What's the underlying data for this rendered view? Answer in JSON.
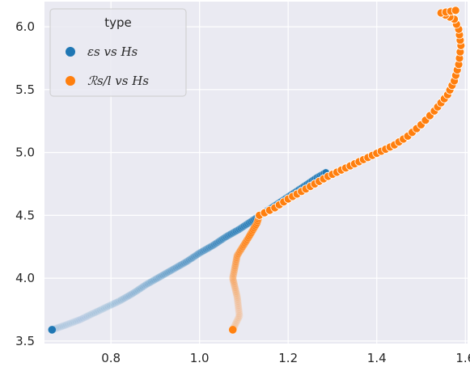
{
  "chart_data": {
    "type": "scatter",
    "title": "",
    "xlabel": "",
    "ylabel": "",
    "xlim": [
      0.65,
      1.605
    ],
    "ylim": [
      3.48,
      6.2
    ],
    "x_ticks": [
      "0.8",
      "1.0",
      "1.2",
      "1.4",
      "1.6"
    ],
    "y_ticks": [
      "3.5",
      "4.0",
      "4.5",
      "5.0",
      "5.5",
      "6.0"
    ],
    "grid": true,
    "legend": {
      "title": "type",
      "placement": "top-left",
      "entries": [
        "𝜀s vs Hs",
        "ℛs/l vs Hs"
      ]
    },
    "colors": {
      "background": "#eaeaf2",
      "grid": "#ffffff",
      "series_blue": "#1f77b4",
      "series_orange": "#ff7f0e"
    },
    "series": [
      {
        "name": "𝜀s vs Hs",
        "color": "#1f77b4",
        "points": [
          [
            0.667,
            3.59
          ],
          [
            0.7,
            3.63
          ],
          [
            0.73,
            3.67
          ],
          [
            0.76,
            3.72
          ],
          [
            0.79,
            3.77
          ],
          [
            0.82,
            3.82
          ],
          [
            0.85,
            3.88
          ],
          [
            0.88,
            3.95
          ],
          [
            0.91,
            4.01
          ],
          [
            0.94,
            4.07
          ],
          [
            0.97,
            4.13
          ],
          [
            1.0,
            4.2
          ],
          [
            1.03,
            4.26
          ],
          [
            1.06,
            4.33
          ],
          [
            1.09,
            4.39
          ],
          [
            1.12,
            4.46
          ],
          [
            1.15,
            4.53
          ],
          [
            1.18,
            4.6
          ],
          [
            1.21,
            4.67
          ],
          [
            1.24,
            4.74
          ],
          [
            1.265,
            4.8
          ],
          [
            1.285,
            4.84
          ]
        ]
      },
      {
        "name": "ℛs/l vs Hs",
        "color": "#ff7f0e",
        "points": [
          [
            1.075,
            3.59
          ],
          [
            1.09,
            3.7
          ],
          [
            1.085,
            3.85
          ],
          [
            1.075,
            4.0
          ],
          [
            1.085,
            4.18
          ],
          [
            1.11,
            4.32
          ],
          [
            1.13,
            4.44
          ],
          [
            1.135,
            4.5
          ],
          [
            1.17,
            4.56
          ],
          [
            1.2,
            4.63
          ],
          [
            1.23,
            4.69
          ],
          [
            1.26,
            4.75
          ],
          [
            1.29,
            4.81
          ],
          [
            1.32,
            4.86
          ],
          [
            1.35,
            4.91
          ],
          [
            1.38,
            4.96
          ],
          [
            1.41,
            5.01
          ],
          [
            1.44,
            5.06
          ],
          [
            1.47,
            5.13
          ],
          [
            1.5,
            5.22
          ],
          [
            1.53,
            5.33
          ],
          [
            1.56,
            5.46
          ],
          [
            1.575,
            5.57
          ],
          [
            1.585,
            5.7
          ],
          [
            1.59,
            5.85
          ],
          [
            1.585,
            5.98
          ],
          [
            1.575,
            6.06
          ],
          [
            1.545,
            6.11
          ],
          [
            1.578,
            6.13
          ]
        ]
      }
    ]
  }
}
